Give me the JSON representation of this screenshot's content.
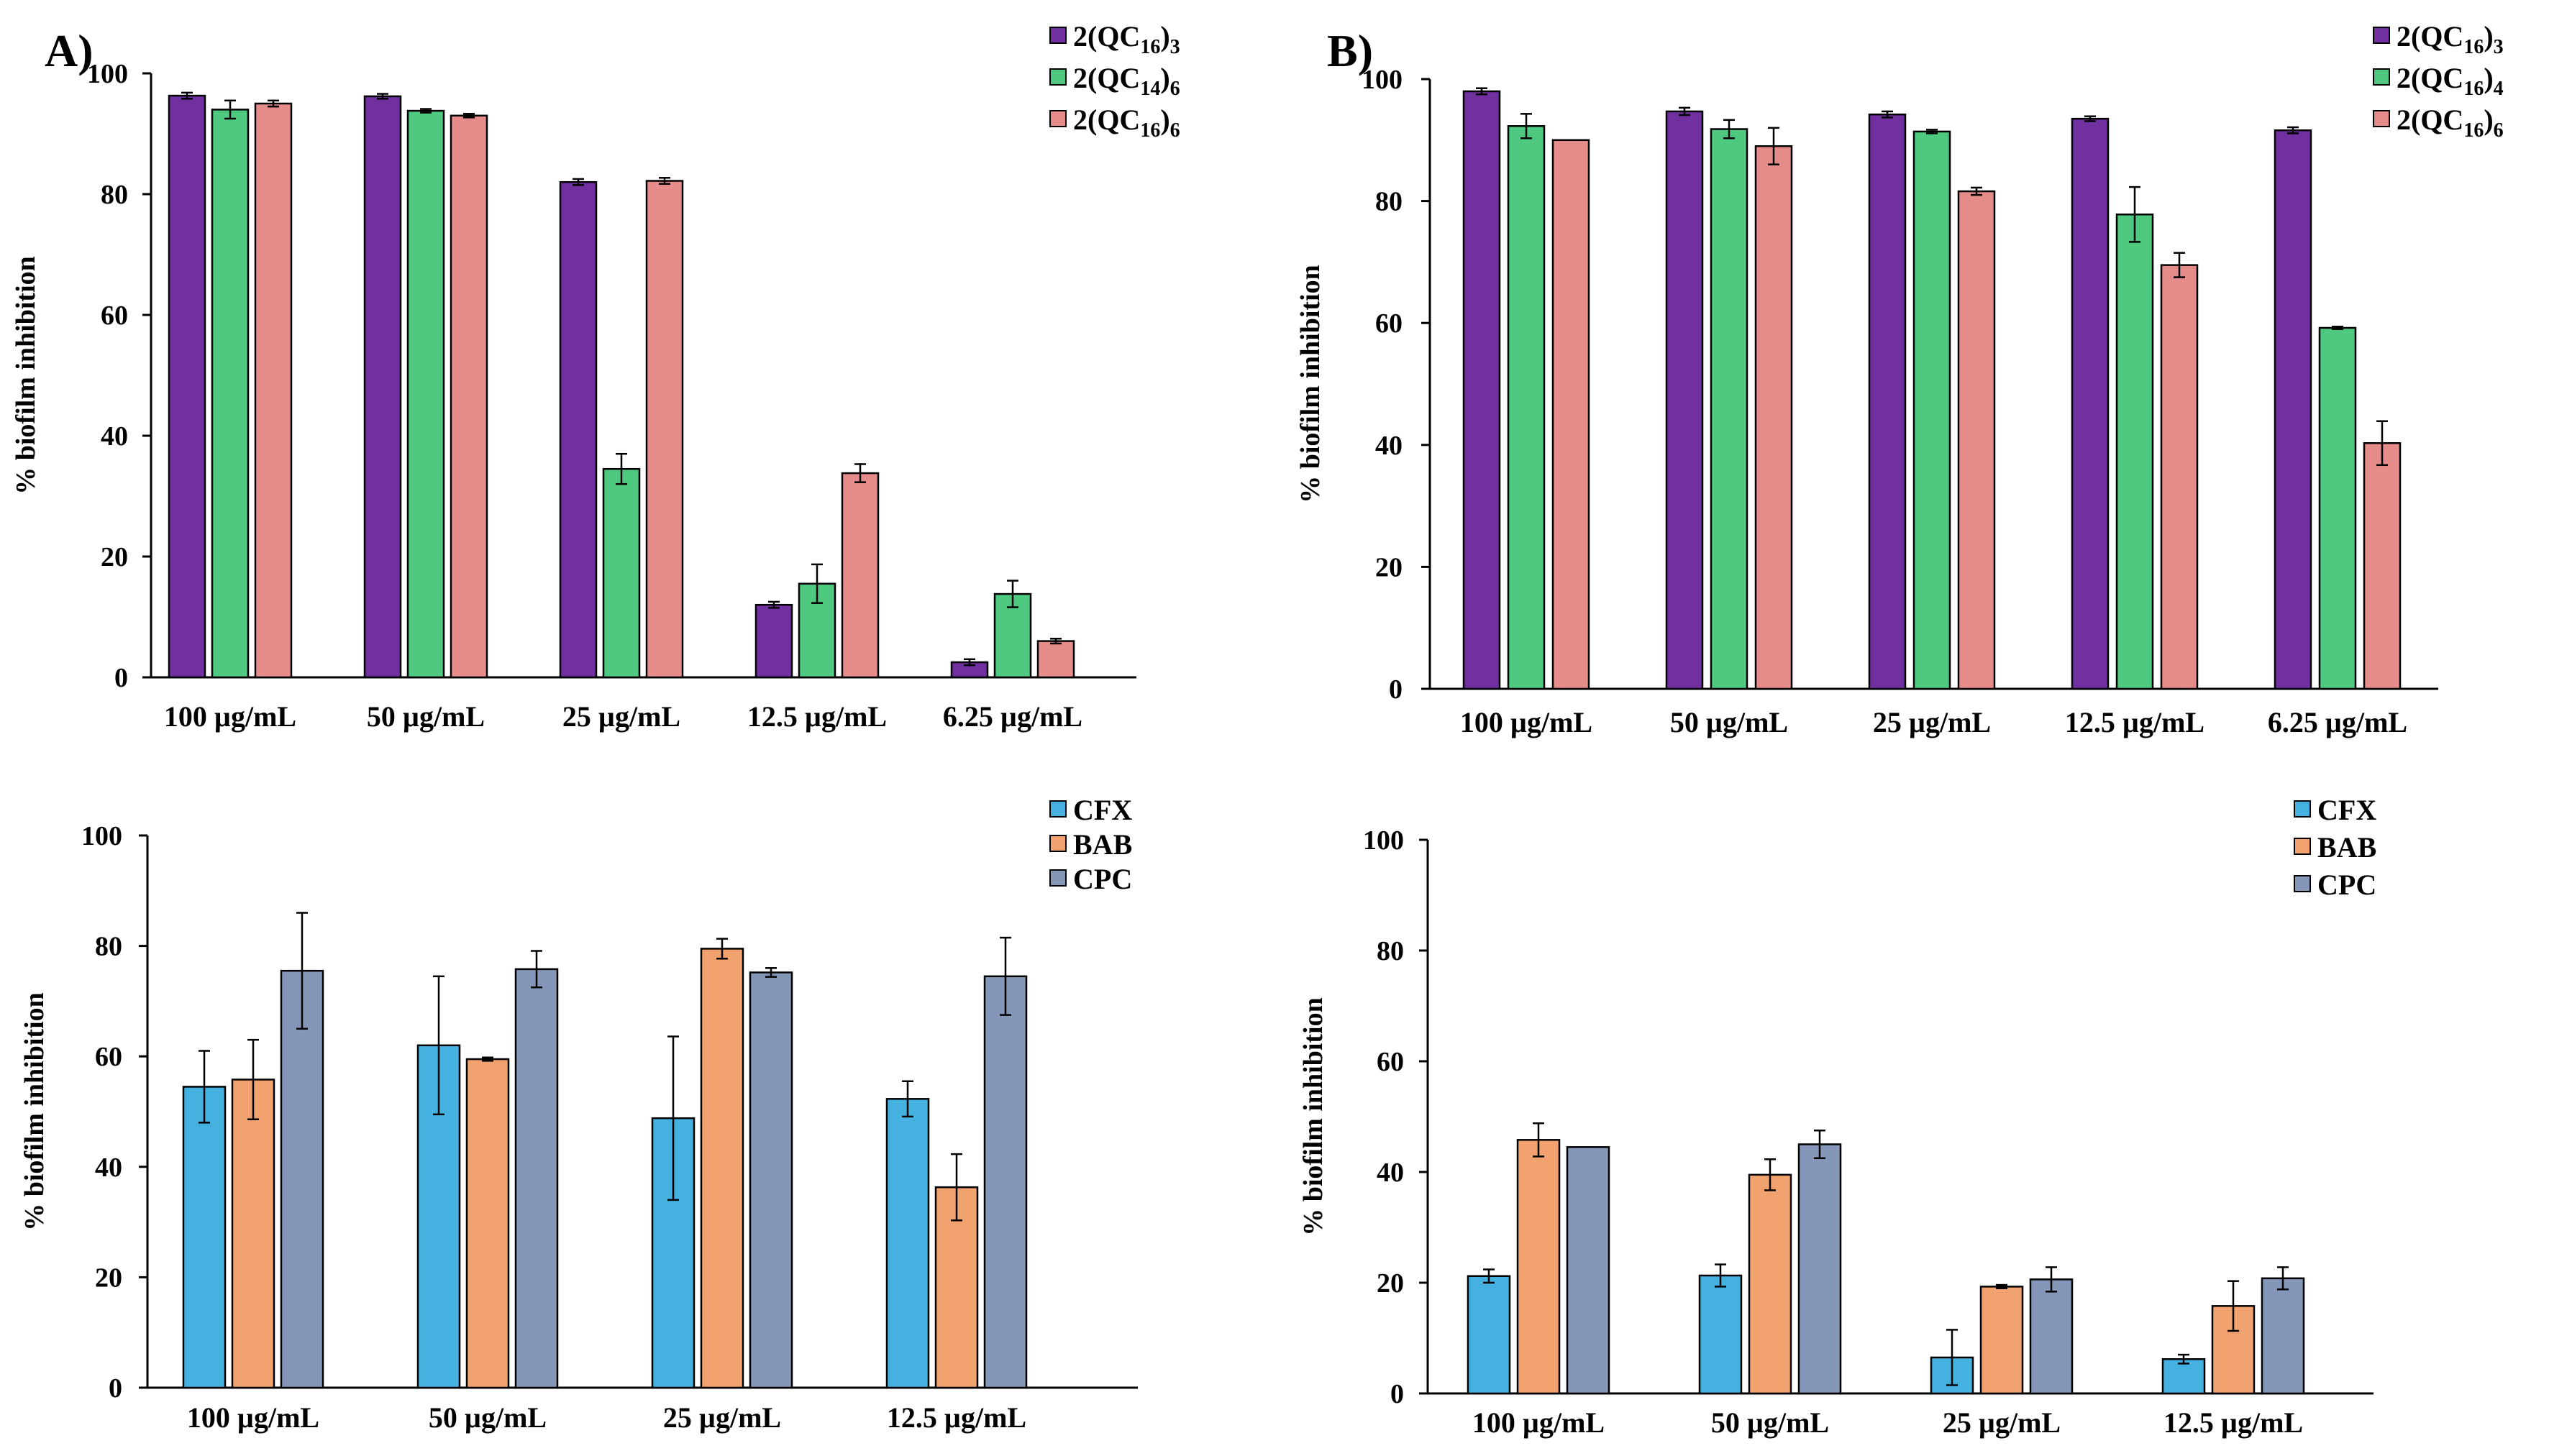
{
  "panels": {
    "A": "A)",
    "B": "B)"
  },
  "colors": {
    "purple": "#7030A0",
    "green": "#4EC97F",
    "salmon": "#E58C8A",
    "blue": "#45B1E0",
    "orange": "#F2A26E",
    "slate": "#8497B8",
    "axis": "#000000",
    "errorbar": "#000000"
  },
  "chart_data": [
    {
      "id": "A-top",
      "type": "bar",
      "title": "",
      "xlabel": "",
      "ylabel": "% biofilm inhibition",
      "ylim": [
        0,
        100
      ],
      "yticks": [
        0,
        20,
        40,
        60,
        80,
        100
      ],
      "grid": false,
      "legend_position": "top-right",
      "categories": [
        "100 µg/mL",
        "50 µg/mL",
        "25 µg/mL",
        "12.5 µg/mL",
        "6.25 µg/mL"
      ],
      "series": [
        {
          "name": "2(QC16)3",
          "legend": {
            "base": "2(QC",
            "sub1": "16",
            "mid": ")",
            "sub2": "3"
          },
          "color": "#7030A0",
          "values": [
            96.3,
            96.2,
            82.0,
            12.0,
            2.5
          ],
          "errors": [
            0.5,
            0.4,
            0.5,
            0.5,
            0.5
          ]
        },
        {
          "name": "2(QC14)6",
          "legend": {
            "base": "2(QC",
            "sub1": "14",
            "mid": ")",
            "sub2": "6"
          },
          "color": "#4EC97F",
          "values": [
            94.0,
            93.8,
            34.5,
            15.5,
            13.8
          ],
          "errors": [
            1.5,
            0.3,
            2.5,
            3.2,
            2.2
          ]
        },
        {
          "name": "2(QC16)6",
          "legend": {
            "base": "2(QC",
            "sub1": "16",
            "mid": ")",
            "sub2": "6"
          },
          "color": "#E58C8A",
          "values": [
            95.0,
            93.0,
            82.2,
            33.8,
            6.0
          ],
          "errors": [
            0.5,
            0.3,
            0.5,
            1.5,
            0.4
          ]
        }
      ]
    },
    {
      "id": "B-top",
      "type": "bar",
      "title": "",
      "xlabel": "",
      "ylabel": "% biofilm inhibition",
      "ylim": [
        0,
        100
      ],
      "yticks": [
        0,
        20,
        40,
        60,
        80,
        100
      ],
      "grid": false,
      "legend_position": "top-right",
      "categories": [
        "100 µg/mL",
        "50 µg/mL",
        "25 µg/mL",
        "12.5 µg/mL",
        "6.25 µg/mL"
      ],
      "series": [
        {
          "name": "2(QC16)3",
          "legend": {
            "base": "2(QC",
            "sub1": "16",
            "mid": ")",
            "sub2": "3"
          },
          "color": "#7030A0",
          "values": [
            98.0,
            94.7,
            94.2,
            93.5,
            91.6
          ],
          "errors": [
            0.5,
            0.6,
            0.5,
            0.4,
            0.5
          ]
        },
        {
          "name": "2(QC16)4",
          "legend": {
            "base": "2(QC",
            "sub1": "16",
            "mid": ")",
            "sub2": "4"
          },
          "color": "#4EC97F",
          "values": [
            92.3,
            91.8,
            91.4,
            77.8,
            59.2
          ],
          "errors": [
            2.0,
            1.5,
            0.3,
            4.5,
            0.2
          ]
        },
        {
          "name": "2(QC16)6",
          "legend": {
            "base": "2(QC",
            "sub1": "16",
            "mid": ")",
            "sub2": "6"
          },
          "color": "#E58C8A",
          "values": [
            90.0,
            89.0,
            81.6,
            69.5,
            40.3
          ],
          "errors": [
            0.0,
            3.0,
            0.6,
            2.0,
            3.6
          ]
        }
      ]
    },
    {
      "id": "A-bottom",
      "type": "bar",
      "title": "",
      "xlabel": "",
      "ylabel": "% biofilm inhibition",
      "ylim": [
        0,
        100
      ],
      "yticks": [
        0,
        20,
        40,
        60,
        80,
        100
      ],
      "grid": false,
      "legend_position": "top-right",
      "categories": [
        "100 µg/mL",
        "50 µg/mL",
        "25 µg/mL",
        "12.5 µg/mL"
      ],
      "series": [
        {
          "name": "CFX",
          "legend": {
            "base": "CFX"
          },
          "color": "#45B1E0",
          "values": [
            54.5,
            62.0,
            48.8,
            52.3
          ],
          "errors": [
            6.5,
            12.5,
            14.8,
            3.2
          ]
        },
        {
          "name": "BAB",
          "legend": {
            "base": "BAB"
          },
          "color": "#F2A26E",
          "values": [
            55.8,
            59.5,
            79.5,
            36.3
          ],
          "errors": [
            7.2,
            0.3,
            1.8,
            6.0
          ]
        },
        {
          "name": "CPC",
          "legend": {
            "base": "CPC"
          },
          "color": "#8497B8",
          "values": [
            75.5,
            75.8,
            75.2,
            74.5
          ],
          "errors": [
            10.5,
            3.3,
            0.8,
            7.0
          ]
        }
      ]
    },
    {
      "id": "B-bottom",
      "type": "bar",
      "title": "",
      "xlabel": "",
      "ylabel": "% biofilm inhibition",
      "ylim": [
        0,
        100
      ],
      "yticks": [
        0,
        20,
        40,
        60,
        80,
        100
      ],
      "grid": false,
      "legend_position": "top-right",
      "categories": [
        "100 µg/mL",
        "50 µg/mL",
        "25 µg/mL",
        "12.5 µg/mL"
      ],
      "series": [
        {
          "name": "CFX",
          "legend": {
            "base": "CFX"
          },
          "color": "#45B1E0",
          "values": [
            21.2,
            21.3,
            6.5,
            6.2
          ],
          "errors": [
            1.2,
            2.0,
            5.0,
            0.8
          ]
        },
        {
          "name": "BAB",
          "legend": {
            "base": "BAB"
          },
          "color": "#F2A26E",
          "values": [
            45.8,
            39.5,
            19.3,
            15.8
          ],
          "errors": [
            3.0,
            2.8,
            0.3,
            4.5
          ]
        },
        {
          "name": "CPC",
          "legend": {
            "base": "CPC"
          },
          "color": "#8497B8",
          "values": [
            44.5,
            45.0,
            20.6,
            20.8
          ],
          "errors": [
            0.0,
            2.5,
            2.2,
            2.0
          ]
        }
      ]
    }
  ]
}
